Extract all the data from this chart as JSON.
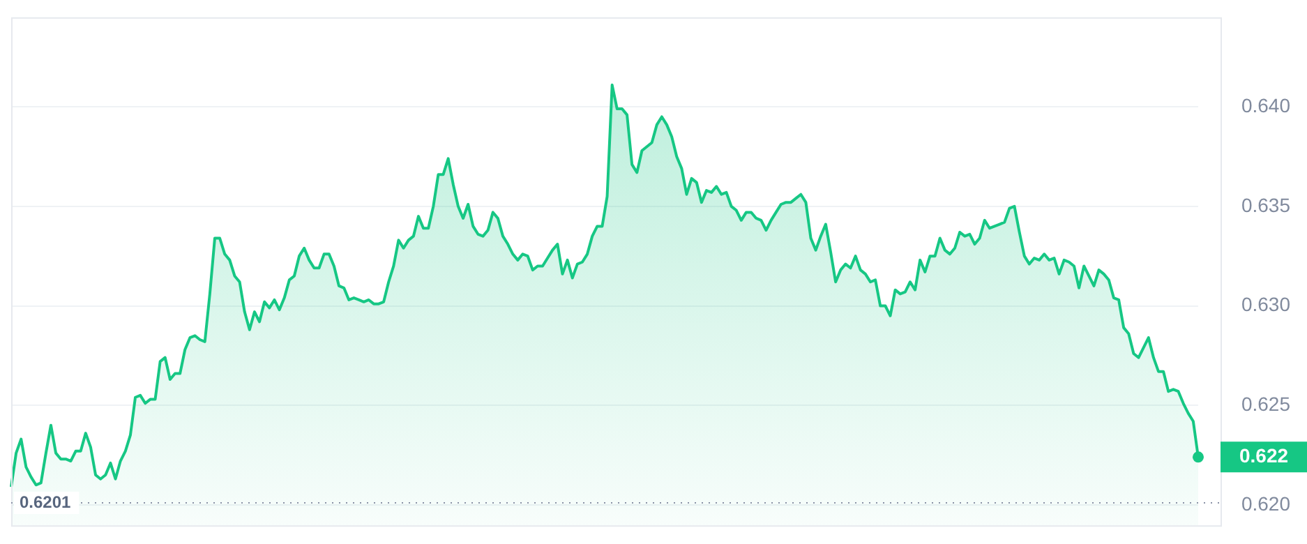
{
  "chart_data": {
    "type": "area",
    "categories": [
      null,
      null,
      null,
      null,
      null,
      null,
      null,
      null,
      null,
      null,
      null,
      null,
      null,
      null,
      null,
      null,
      null,
      null,
      null,
      null,
      null,
      null,
      null,
      null,
      null,
      null,
      null,
      null,
      null,
      null,
      null,
      null,
      null,
      null,
      null,
      null,
      null,
      null,
      null,
      null,
      null,
      null,
      null,
      null,
      null,
      null,
      null,
      null,
      null,
      null,
      null,
      null,
      null,
      null,
      null,
      null,
      null,
      null,
      null,
      null,
      null,
      null,
      null,
      null,
      null,
      null,
      null,
      null,
      null,
      null,
      null,
      null,
      null,
      null,
      null,
      null,
      null,
      null,
      null,
      null,
      null,
      null,
      null,
      null,
      null,
      null,
      null,
      null,
      null,
      null,
      null,
      null,
      null,
      null,
      null,
      null,
      null,
      null,
      null,
      null,
      null,
      null,
      null,
      null,
      null,
      null,
      null,
      null,
      null,
      null,
      null,
      null,
      null,
      null,
      null,
      null,
      null,
      null,
      null,
      null,
      null,
      null,
      null,
      null,
      null,
      null,
      null,
      null,
      null,
      null,
      null,
      null,
      null,
      null,
      null,
      null,
      null,
      null,
      null,
      null,
      null,
      null,
      null,
      null,
      null,
      null,
      null,
      null,
      null,
      null,
      null,
      null,
      null,
      null,
      null,
      null,
      null,
      null,
      null,
      null,
      null,
      null,
      null,
      null,
      null,
      null,
      null,
      null,
      null,
      null,
      null,
      null,
      null,
      null,
      null,
      null,
      null,
      null,
      null,
      null,
      null,
      null,
      null,
      null,
      null,
      null,
      null,
      null,
      null,
      null,
      null,
      null,
      null,
      null,
      null,
      null,
      null,
      null,
      null,
      null,
      null,
      null,
      null,
      null,
      null,
      null,
      null,
      null,
      null,
      null,
      null,
      null,
      null,
      null,
      null,
      null,
      null,
      null,
      null,
      null,
      null,
      null,
      null,
      null,
      null,
      null,
      null,
      null,
      null,
      null,
      null,
      null,
      null,
      null,
      null,
      null,
      null,
      null,
      null,
      null
    ],
    "values": [
      0.6209,
      0.6226,
      0.6233,
      0.6219,
      0.6214,
      0.621,
      0.6211,
      0.6226,
      0.624,
      0.6226,
      0.6223,
      0.6223,
      0.6222,
      0.6227,
      0.6227,
      0.6236,
      0.6229,
      0.6215,
      0.6213,
      0.6215,
      0.6221,
      0.6213,
      0.6222,
      0.6227,
      0.6235,
      0.6254,
      0.6255,
      0.6251,
      0.6253,
      0.6253,
      0.6272,
      0.6274,
      0.6263,
      0.6266,
      0.6266,
      0.6278,
      0.6284,
      0.6285,
      0.6283,
      0.6282,
      0.6306,
      0.6334,
      0.6334,
      0.6326,
      0.6323,
      0.6315,
      0.6312,
      0.6297,
      0.6288,
      0.6297,
      0.6292,
      0.6302,
      0.6299,
      0.6303,
      0.6298,
      0.6304,
      0.6313,
      0.6315,
      0.6325,
      0.6329,
      0.6323,
      0.6319,
      0.6319,
      0.6326,
      0.6326,
      0.632,
      0.631,
      0.6309,
      0.6303,
      0.6304,
      0.6303,
      0.6302,
      0.6303,
      0.6301,
      0.6301,
      0.6302,
      0.6312,
      0.632,
      0.6333,
      0.6329,
      0.6333,
      0.6335,
      0.6345,
      0.6339,
      0.6339,
      0.635,
      0.6366,
      0.6366,
      0.6374,
      0.6361,
      0.635,
      0.6344,
      0.6351,
      0.634,
      0.6336,
      0.6335,
      0.6338,
      0.6347,
      0.6344,
      0.6335,
      0.6331,
      0.6326,
      0.6323,
      0.6326,
      0.6325,
      0.6318,
      0.632,
      0.632,
      0.6324,
      0.6328,
      0.6331,
      0.6316,
      0.6323,
      0.6314,
      0.6321,
      0.6322,
      0.6326,
      0.6335,
      0.634,
      0.634,
      0.6355,
      0.6411,
      0.6399,
      0.6399,
      0.6396,
      0.6371,
      0.6367,
      0.6378,
      0.638,
      0.6382,
      0.6391,
      0.6395,
      0.6391,
      0.6385,
      0.6375,
      0.6369,
      0.6356,
      0.6364,
      0.6362,
      0.6352,
      0.6358,
      0.6357,
      0.636,
      0.6356,
      0.6357,
      0.635,
      0.6348,
      0.6343,
      0.6347,
      0.6347,
      0.6344,
      0.6343,
      0.6338,
      0.6343,
      0.6347,
      0.6351,
      0.6352,
      0.6352,
      0.6354,
      0.6356,
      0.6352,
      0.6334,
      0.6328,
      0.6335,
      0.6341,
      0.6327,
      0.6312,
      0.6318,
      0.6321,
      0.6319,
      0.6325,
      0.6318,
      0.6316,
      0.6312,
      0.6313,
      0.63,
      0.63,
      0.6295,
      0.6308,
      0.6306,
      0.6307,
      0.6312,
      0.6308,
      0.6323,
      0.6317,
      0.6325,
      0.6325,
      0.6334,
      0.6328,
      0.6326,
      0.6329,
      0.6337,
      0.6335,
      0.6336,
      0.6331,
      0.6334,
      0.6343,
      0.6339,
      0.634,
      0.6341,
      0.6342,
      0.6349,
      0.635,
      0.6337,
      0.6325,
      0.6321,
      0.6324,
      0.6323,
      0.6326,
      0.6323,
      0.6324,
      0.6316,
      0.6323,
      0.6322,
      0.632,
      0.6309,
      0.632,
      0.6315,
      0.631,
      0.6318,
      0.6316,
      0.6313,
      0.6304,
      0.6303,
      0.6289,
      0.6286,
      0.6276,
      0.6274,
      0.6279,
      0.6284,
      0.6274,
      0.6267,
      0.6267,
      0.6257,
      0.6258,
      0.6257,
      0.6251,
      0.6246,
      0.6242,
      0.6224
    ],
    "color": "#16c784",
    "ylim": [
      0.6189,
      0.6445
    ],
    "yticks": [
      {
        "value": 0.62,
        "label": "0.620"
      },
      0.625,
      {
        "value": 0.63,
        "label": "0.630"
      },
      0.635,
      {
        "value": 0.64,
        "label": "0.640"
      }
    ],
    "grid": "y",
    "ref_lines": [
      {
        "axis": "y",
        "value": 0.6201,
        "label": "0.6201",
        "line_style": "dotted"
      }
    ],
    "annotations": [
      "0.622"
    ]
  }
}
